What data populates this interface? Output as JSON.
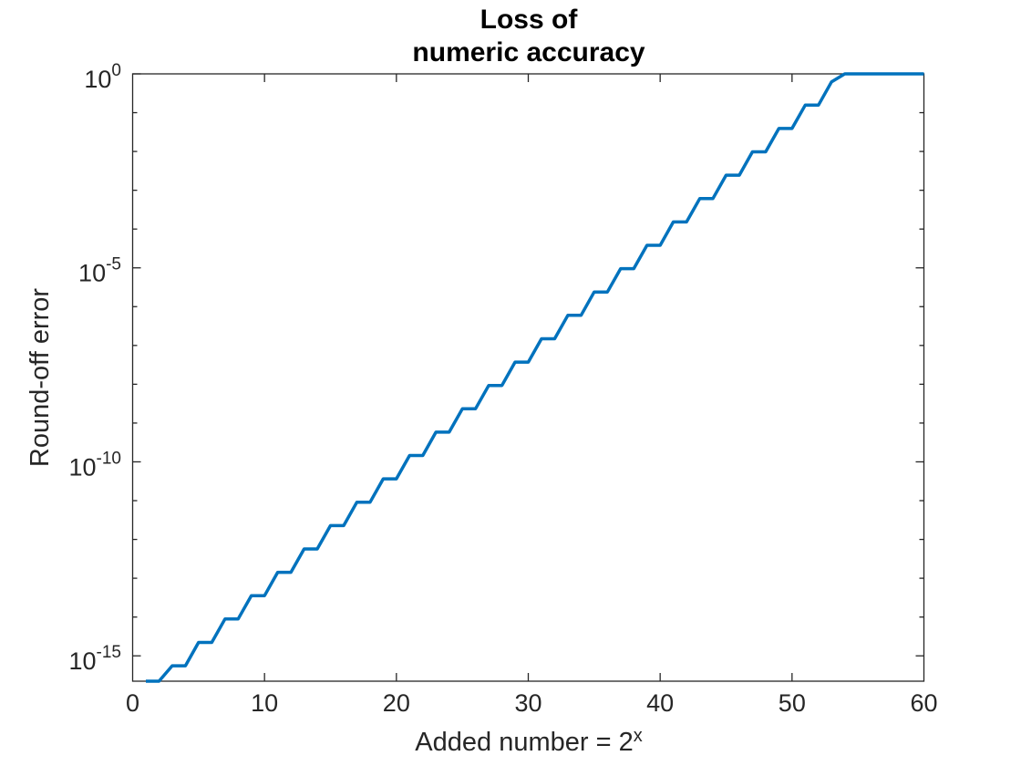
{
  "chart_data": {
    "type": "line",
    "title_lines": [
      "Loss of",
      "numeric accuracy"
    ],
    "ylabel": "Round-off error",
    "xlabel_base": "Added number = 2",
    "xlabel_sup": "x",
    "xlim": [
      0,
      60
    ],
    "ylim": [
      2.220446e-16,
      1
    ],
    "x_ticks": [
      0,
      10,
      20,
      30,
      40,
      50,
      60
    ],
    "y_major_ticks": [
      {
        "base": "10",
        "exp": "0",
        "value": 1
      },
      {
        "base": "10",
        "exp": "-5",
        "value": 1e-05
      },
      {
        "base": "10",
        "exp": "-10",
        "value": 1e-10
      },
      {
        "base": "10",
        "exp": "-15",
        "value": 1e-15
      }
    ],
    "y_minor_tick_decades": [
      -1,
      -2,
      -3,
      -4,
      -6,
      -7,
      -8,
      -9,
      -11,
      -12,
      -13,
      -14
    ],
    "grid": false,
    "legend": null,
    "box": true,
    "line_color": "#0072BD",
    "axis_color": "#262626",
    "title_color": "#000000",
    "series": [
      {
        "name": "round-off error",
        "x": [
          1,
          2,
          3,
          4,
          5,
          6,
          7,
          8,
          9,
          10,
          11,
          12,
          13,
          14,
          15,
          16,
          17,
          18,
          19,
          20,
          21,
          22,
          23,
          24,
          25,
          26,
          27,
          28,
          29,
          30,
          31,
          32,
          33,
          34,
          35,
          36,
          37,
          38,
          39,
          40,
          41,
          42,
          43,
          44,
          45,
          46,
          47,
          48,
          49,
          50,
          51,
          52,
          53,
          54,
          55,
          56,
          57,
          58,
          59,
          60
        ],
        "y": [
          2.220446e-16,
          2.220446e-16,
          5.551115e-16,
          5.551115e-16,
          2.220446e-15,
          2.220446e-15,
          8.881784e-15,
          8.881784e-15,
          3.552714e-14,
          3.552714e-14,
          1.421085e-13,
          1.421085e-13,
          5.684342e-13,
          5.684342e-13,
          2.273737e-12,
          2.273737e-12,
          9.094947e-12,
          9.094947e-12,
          3.637979e-11,
          3.637979e-11,
          1.455192e-10,
          1.455192e-10,
          5.820766e-10,
          5.820766e-10,
          2.328306e-09,
          2.328306e-09,
          9.313226e-09,
          9.313226e-09,
          3.72529e-08,
          3.72529e-08,
          1.490116e-07,
          1.490116e-07,
          5.960464e-07,
          5.960464e-07,
          2.384186e-06,
          2.384186e-06,
          9.536743e-06,
          9.536743e-06,
          3.814697e-05,
          3.814697e-05,
          0.0001525879,
          0.0001525879,
          0.0006103516,
          0.0006103516,
          0.002441406,
          0.002441406,
          0.009765625,
          0.009765625,
          0.0390625,
          0.0390625,
          0.15625,
          0.15625,
          0.625,
          1,
          1,
          1,
          1,
          1,
          1,
          1
        ]
      }
    ]
  }
}
